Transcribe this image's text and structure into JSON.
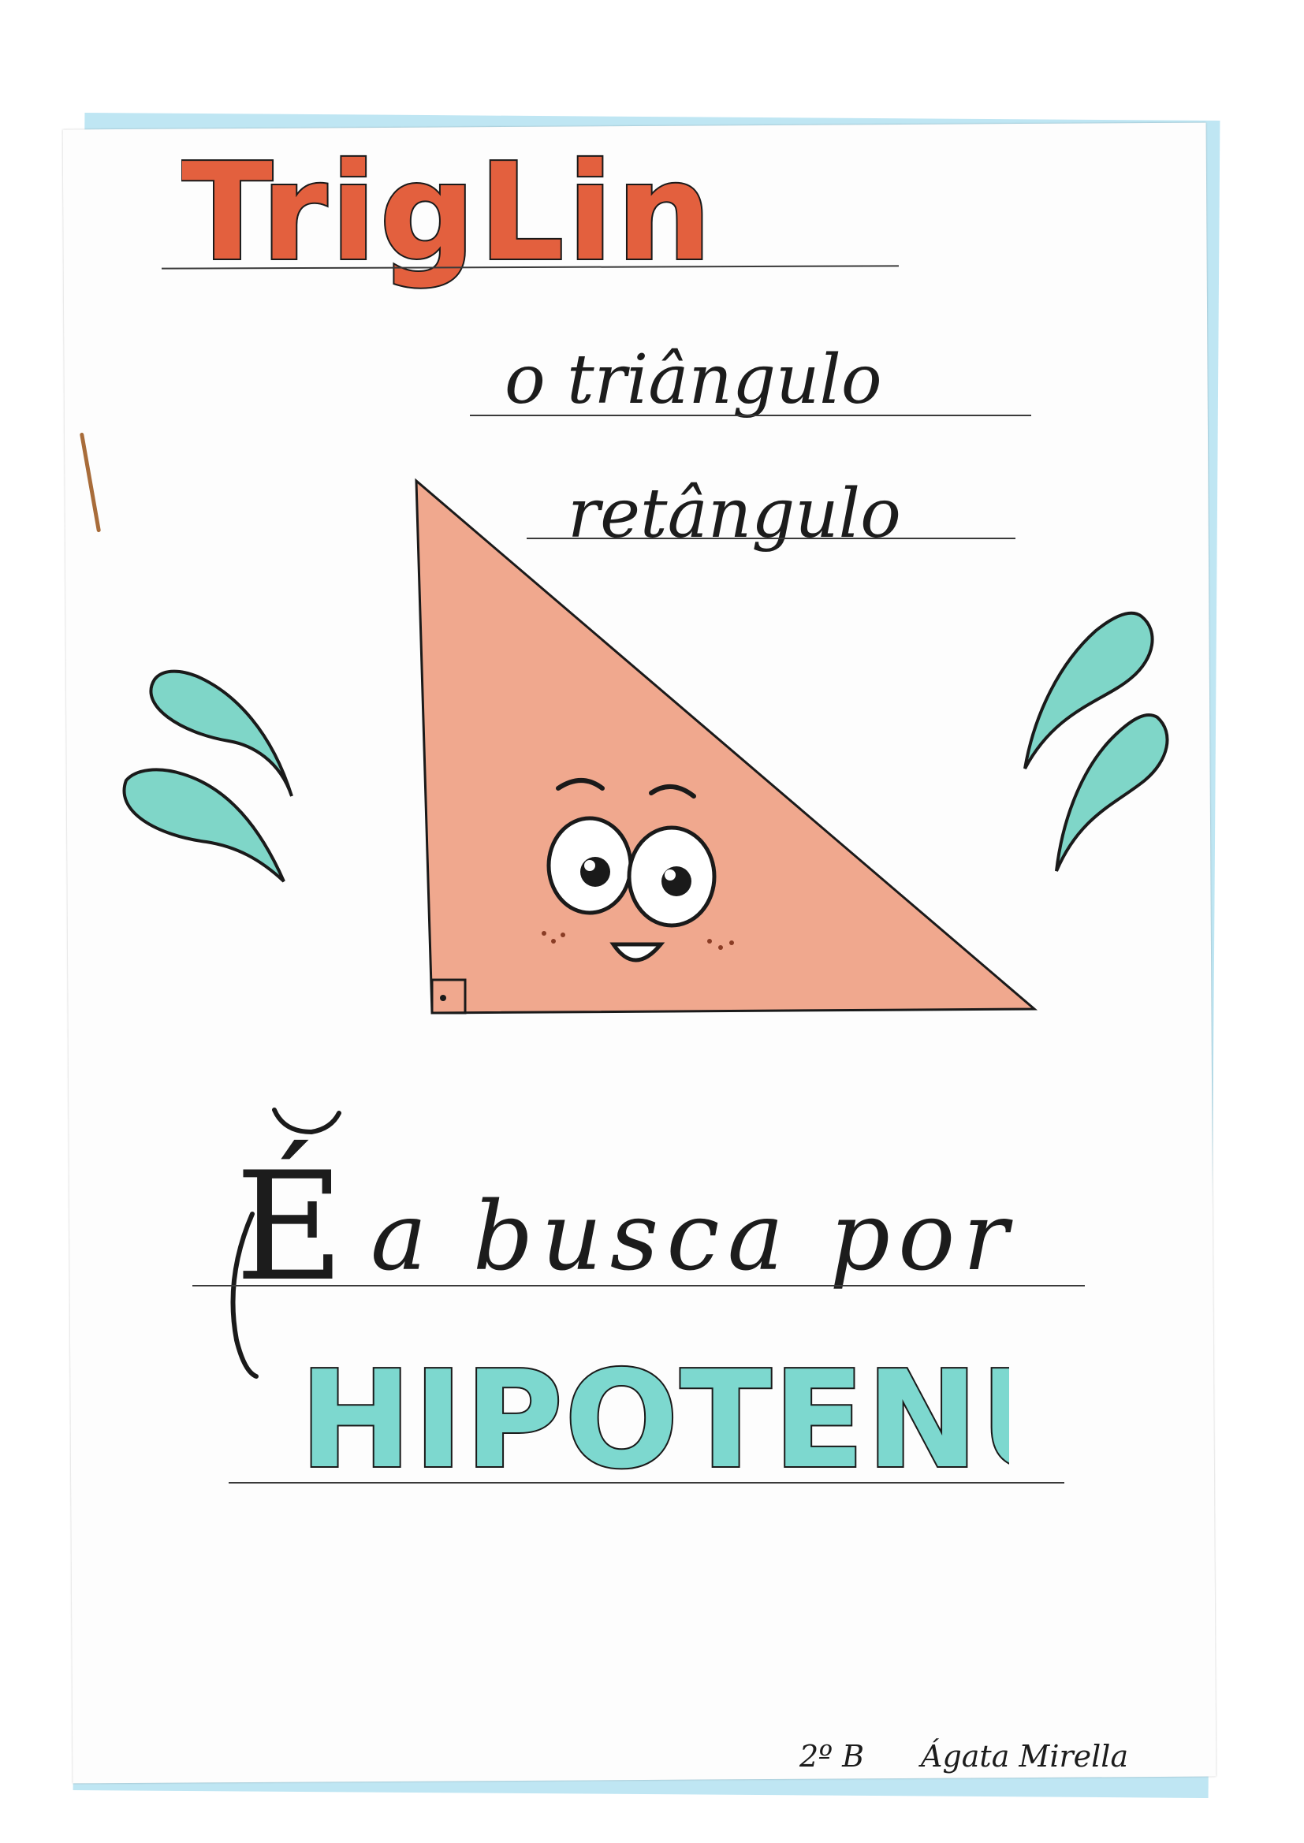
{
  "cover": {
    "title": "TrigLin",
    "subtitle_line1": "o triângulo",
    "subtitle_line2": "retângulo",
    "tagline_word1": "É",
    "tagline_rest": "a busca por",
    "highlight": "HIPOTENUSA",
    "class_label": "2º B",
    "author": "Ágata Mirella"
  },
  "colors": {
    "title_fill": "#e3603e",
    "triangle_fill": "#f0a88e",
    "drops_fill": "#7fd6c8",
    "highlight_fill": "#7dd8cf",
    "paper_edge": "#bfe6f3"
  }
}
